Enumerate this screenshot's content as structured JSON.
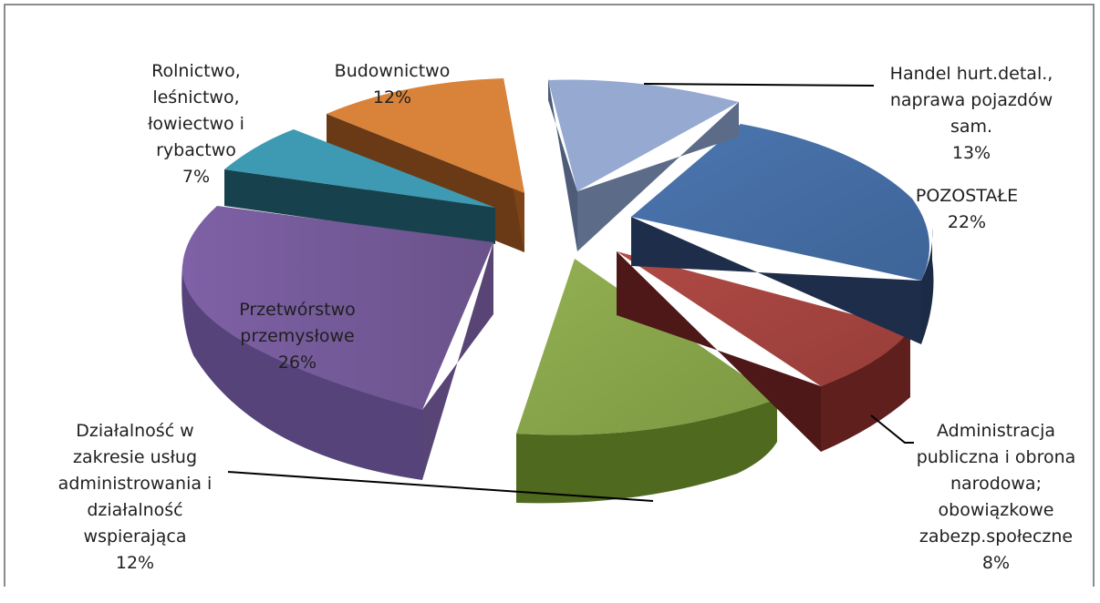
{
  "chart_data": {
    "type": "pie",
    "style": "3d-exploded",
    "slices": [
      {
        "label": "Handel hurt.detal.,\nnaprawa pojazdów\nsam.",
        "value": 13,
        "percent_label": "13%",
        "color": "#94A8D0"
      },
      {
        "label": "POZOSTAŁE",
        "value": 22,
        "percent_label": "22%",
        "color": "#4670A6"
      },
      {
        "label": "Administracja\npubliczna i obrona\nnarodowa;\nobowiązkowe\nzabezp.społeczne",
        "value": 8,
        "percent_label": "8%",
        "color": "#A8443F"
      },
      {
        "label": "",
        "value": 12,
        "percent_label": "",
        "color": "#88A54B"
      },
      {
        "label": "Działalność w\nzakresie usług\nadministrowania i\ndziałalność\nwspierająca",
        "value": 12,
        "percent_label": "12%",
        "color": "#7B5A9E"
      },
      {
        "label": "Przetwórstwo\nprzemysłowe",
        "value": 26,
        "percent_label": "26%",
        "color": "#6B548A"
      },
      {
        "label": "Rolnictwo,\nleśnictwo,\nłowiectwo i\nrybactwo",
        "value": 7,
        "percent_label": "7%",
        "color": "#3B95AE"
      },
      {
        "label": "Budownictwo",
        "value": 12,
        "percent_label": "12%",
        "color": "#D87D35"
      }
    ]
  }
}
